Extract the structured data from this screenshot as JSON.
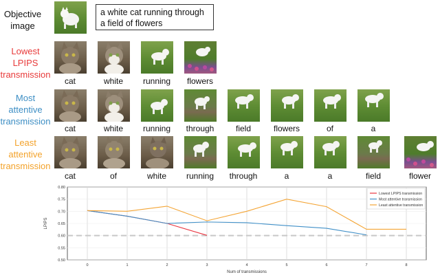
{
  "labels": {
    "objective": "Objective image",
    "red": "Lowest LPIPS transmission",
    "blue": "Most attentive transmission",
    "orange": "Least attentive transmission"
  },
  "prompt": "a white cat running through a field of flowers",
  "rows": {
    "red": [
      "cat",
      "white",
      "running",
      "flowers"
    ],
    "blue": [
      "cat",
      "white",
      "running",
      "through",
      "field",
      "flowers",
      "of",
      "a"
    ],
    "orange": [
      "cat",
      "of",
      "white",
      "running",
      "through",
      "a",
      "a",
      "field",
      "flower"
    ]
  },
  "chart_data": {
    "type": "line",
    "x": [
      0,
      1,
      2,
      3,
      4,
      5,
      6,
      7,
      8
    ],
    "xlabel": "Num of transmissions",
    "ylabel": "LPIPS",
    "xlim": [
      -0.5,
      8.5
    ],
    "ylim": [
      0.5,
      0.8
    ],
    "yticks": [
      "0.80",
      "0.75",
      "0.70",
      "0.65",
      "0.60",
      "0.55",
      "0.50"
    ],
    "grid": true,
    "legend_position": "top-right",
    "reference_line": 0.6,
    "series": [
      {
        "name": "Lowest LPIPS transmission",
        "color": "#e8343f",
        "x": [
          0,
          1,
          2,
          3
        ],
        "values": [
          0.703,
          0.68,
          0.65,
          0.601
        ]
      },
      {
        "name": "Most attentive transmission",
        "color": "#3f8fc7",
        "x": [
          0,
          1,
          2,
          3,
          4,
          5,
          6,
          7
        ],
        "values": [
          0.703,
          0.68,
          0.65,
          0.656,
          0.653,
          0.641,
          0.63,
          0.603
        ]
      },
      {
        "name": "Least attentive transmission",
        "color": "#f4a433",
        "x": [
          0,
          1,
          2,
          3,
          4,
          5,
          6,
          7,
          8
        ],
        "values": [
          0.703,
          0.7,
          0.721,
          0.661,
          0.7,
          0.75,
          0.719,
          0.626,
          0.626
        ]
      }
    ]
  }
}
